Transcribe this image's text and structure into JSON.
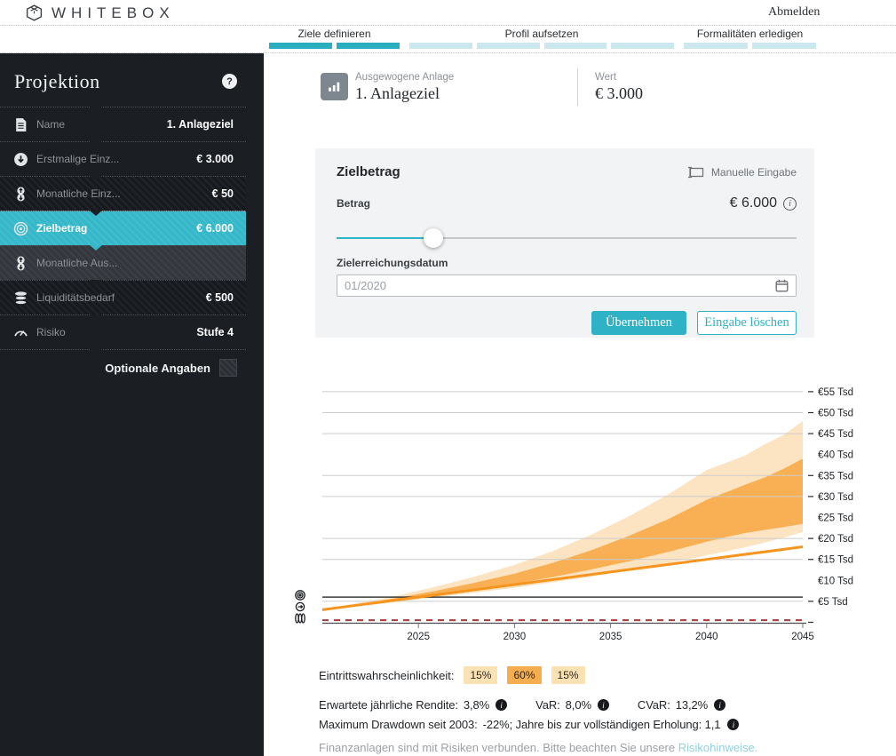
{
  "topbar": {
    "brand": "WHITEBOX",
    "logout": "Abmelden"
  },
  "steps": [
    {
      "label": "Ziele definieren",
      "segments": 2,
      "active": true
    },
    {
      "label": "Profil aufsetzen",
      "segments": 4,
      "active": false
    },
    {
      "label": "Formalitäten erledigen",
      "segments": 2,
      "active": false
    }
  ],
  "sidebar": {
    "title": "Projektion",
    "help": "?",
    "items": [
      {
        "icon": "document-icon",
        "label": "Name",
        "value": "1. Anlageziel",
        "style": "plain"
      },
      {
        "icon": "coin-down-icon",
        "label": "Erstmalige Einz...",
        "value": "€ 3.000",
        "style": "plain"
      },
      {
        "icon": "coins-updown-icon",
        "label": "Monatliche Einz...",
        "value": "€ 50",
        "style": "striped"
      },
      {
        "icon": "target-icon",
        "label": "Zielbetrag",
        "value": "€ 6.000",
        "style": "selected"
      },
      {
        "icon": "coins-updown-icon",
        "label": "Monatliche Aus...",
        "value": "",
        "style": "disabled notch-teal"
      },
      {
        "icon": "coin-stack-icon",
        "label": "Liquiditätsbedarf",
        "value": "€ 500",
        "style": "striped"
      },
      {
        "icon": "gauge-icon",
        "label": "Risiko",
        "value": "Stufe 4",
        "style": "plain"
      }
    ],
    "optional_label": "Optionale Angaben",
    "optional_checked": false
  },
  "header": {
    "subtitle": "Ausgewogene Anlage",
    "title": "1. Anlageziel",
    "value_label": "Wert",
    "value": "€ 3.000"
  },
  "card": {
    "title": "Zielbetrag",
    "manual_entry_label": "Manuelle Eingabe",
    "amount_label": "Betrag",
    "amount_value": "€ 6.000",
    "slider_percent": 21,
    "date_label": "Zielerreichungsdatum",
    "date_placeholder": "01/2020",
    "submit_label": "Übernehmen",
    "clear_label": "Eingabe löschen"
  },
  "chart_data": {
    "type": "area",
    "title": "",
    "xlabel": "",
    "ylabel": "€ Tsd",
    "x_range": [
      2020,
      2045
    ],
    "y_range": [
      0,
      57
    ],
    "x": [
      2020,
      2022,
      2024,
      2026,
      2028,
      2030,
      2032,
      2034,
      2036,
      2038,
      2040,
      2041,
      2042,
      2043,
      2044,
      2045
    ],
    "series": [
      {
        "name": "p95_upper",
        "values": [
          3.0,
          4.7,
          6.5,
          8.6,
          11.0,
          13.7,
          17.0,
          20.9,
          25.4,
          30.5,
          36.3,
          38.0,
          39.8,
          42.4,
          44.7,
          48.0
        ]
      },
      {
        "name": "p80_upper",
        "values": [
          3.0,
          4.4,
          5.9,
          7.6,
          9.5,
          11.6,
          14.2,
          17.2,
          20.7,
          24.6,
          29.2,
          31.0,
          32.8,
          34.5,
          36.6,
          39.0
        ]
      },
      {
        "name": "p20_lower",
        "values": [
          3.0,
          4.1,
          5.2,
          6.5,
          7.8,
          9.2,
          10.8,
          12.6,
          14.6,
          16.8,
          19.2,
          20.3,
          21.3,
          22.0,
          22.7,
          23.5
        ]
      },
      {
        "name": "p5_lower",
        "values": [
          3.0,
          3.9,
          4.9,
          6.0,
          7.1,
          8.2,
          9.5,
          10.9,
          12.4,
          14.1,
          16.0,
          16.9,
          17.9,
          19.0,
          20.2,
          21.5
        ]
      },
      {
        "name": "contributions_line",
        "values": [
          3.0,
          4.2,
          5.4,
          6.6,
          7.8,
          9.0,
          10.2,
          11.4,
          12.6,
          13.8,
          15.0,
          15.6,
          16.2,
          16.8,
          17.4,
          18.0
        ]
      }
    ],
    "reference_lines": [
      {
        "name": "zielbetrag-line",
        "value": 6,
        "style": "solid-black"
      },
      {
        "name": "liquiditaetsbedarf-line",
        "value": 0.5,
        "style": "dashed-red"
      }
    ],
    "x_ticks": [
      2025,
      2030,
      2035,
      2040,
      2045
    ],
    "y_labels": [
      {
        "value": 55,
        "text": "€55 Tsd",
        "tick": true
      },
      {
        "value": 50,
        "text": "€50 Tsd",
        "tick": true
      },
      {
        "value": 45,
        "text": "€45 Tsd",
        "tick": true
      },
      {
        "value": 40,
        "text": "€40 Tsd",
        "tick": false
      },
      {
        "value": 35,
        "text": "€35 Tsd",
        "tick": true
      },
      {
        "value": 30,
        "text": "€30 Tsd",
        "tick": true
      },
      {
        "value": 25,
        "text": "€25 Tsd",
        "tick": false
      },
      {
        "value": 20,
        "text": "€20 Tsd",
        "tick": true
      },
      {
        "value": 15,
        "text": "€15 Tsd",
        "tick": true
      },
      {
        "value": 10,
        "text": "€10 Tsd",
        "tick": false
      },
      {
        "value": 5,
        "text": "€5 Tsd",
        "tick": true
      },
      {
        "value": 0,
        "text": "",
        "tick": true
      }
    ],
    "legend_position": "none",
    "grid": true
  },
  "probability": {
    "label": "Eintrittswahrscheinlichkeit:",
    "badges": [
      {
        "text": "15%",
        "tone": "light"
      },
      {
        "text": "60%",
        "tone": "dark"
      },
      {
        "text": "15%",
        "tone": "light"
      }
    ]
  },
  "metrics": [
    {
      "label": "Erwartete jährliche Rendite:",
      "value": "3,8%",
      "info": true
    },
    {
      "label": "VaR:",
      "value": "8,0%",
      "info": true
    },
    {
      "label": "CVaR:",
      "value": "13,2%",
      "info": true
    }
  ],
  "drawdown": {
    "label": "Maximum Drawdown seit 2003:",
    "value": "-22%; Jahre bis zur vollständigen Erholung: 1,1",
    "info": true
  },
  "disclaimer": {
    "text": "Finanzanlagen sind mit Risiken verbunden. Bitte beachten Sie unsere ",
    "link": "Risikohinweise."
  },
  "colors": {
    "accent": "#2fb3c6",
    "accent_light": "#cbe8ee",
    "selected_row": "#35b8c9",
    "sidebar_bg": "#1b1e23",
    "band_dark": "#f9b055",
    "band_light": "#fce4c2",
    "line_orange": "#f7941e",
    "reference_red": "#a93a38",
    "reference_black": "#3a3a3a",
    "grid": "#cccccc"
  }
}
